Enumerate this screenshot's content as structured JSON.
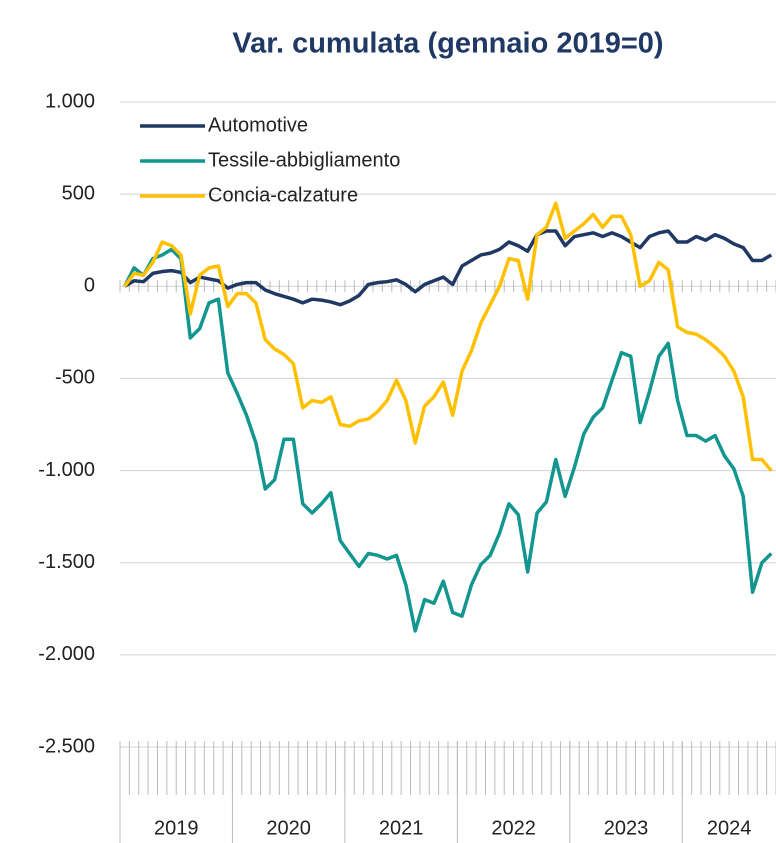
{
  "chart_data": {
    "type": "line",
    "title": "Var. cumulata (gennaio 2019=0)",
    "categories": [
      null,
      null,
      null,
      null,
      null,
      null,
      null,
      null,
      null,
      null,
      null,
      null,
      null,
      null,
      null,
      null,
      null,
      null,
      null,
      null,
      null,
      null,
      null,
      null,
      null,
      null,
      null,
      null,
      null,
      null,
      null,
      null,
      null,
      null,
      null,
      null,
      null,
      null,
      null,
      null,
      null,
      null,
      null,
      null,
      null,
      null,
      null,
      null,
      null,
      null,
      null,
      null,
      null,
      null,
      null,
      null,
      null,
      null,
      null,
      null,
      null,
      null,
      null,
      null,
      null,
      null,
      null,
      null,
      null,
      null
    ],
    "x_groups": [
      {
        "label": "2019",
        "months": 12
      },
      {
        "label": "2020",
        "months": 12
      },
      {
        "label": "2021",
        "months": 12
      },
      {
        "label": "2022",
        "months": 12
      },
      {
        "label": "2023",
        "months": 12
      },
      {
        "label": "2024",
        "months": 10
      }
    ],
    "ylim": [
      -2500,
      1000
    ],
    "yticks": [
      {
        "value": -2500,
        "label": "-2.500"
      },
      {
        "value": -2000,
        "label": "-2.000"
      },
      {
        "value": -1500,
        "label": "-1.500"
      },
      {
        "value": -1000,
        "label": "-1.000"
      },
      -500,
      0,
      500,
      {
        "value": 1000,
        "label": "1.000"
      }
    ],
    "grid": true,
    "legend": "upper left",
    "series": [
      {
        "name": "Automotive",
        "color": "#203864",
        "values": [
          0,
          30,
          25,
          70,
          80,
          85,
          75,
          20,
          50,
          40,
          30,
          -10,
          10,
          20,
          20,
          -20,
          -40,
          -55,
          -70,
          -90,
          -70,
          -75,
          -85,
          -100,
          -80,
          -50,
          10,
          20,
          25,
          35,
          10,
          -30,
          10,
          30,
          50,
          10,
          110,
          140,
          170,
          180,
          200,
          240,
          220,
          190,
          280,
          300,
          300,
          220,
          270,
          280,
          290,
          270,
          290,
          270,
          240,
          210,
          270,
          290,
          300,
          240,
          240,
          270,
          250,
          280,
          260,
          230,
          210,
          140,
          140,
          170
        ]
      },
      {
        "name": "Tessile-abbigliamento",
        "color": "#12968f",
        "values": [
          0,
          100,
          60,
          150,
          170,
          200,
          150,
          -280,
          -230,
          -90,
          -70,
          -470,
          -580,
          -700,
          -850,
          -1100,
          -1050,
          -830,
          -830,
          -1180,
          -1230,
          -1180,
          -1120,
          -1380,
          -1450,
          -1520,
          -1450,
          -1460,
          -1480,
          -1460,
          -1620,
          -1870,
          -1700,
          -1720,
          -1600,
          -1770,
          -1790,
          -1620,
          -1510,
          -1460,
          -1340,
          -1180,
          -1240,
          -1550,
          -1230,
          -1170,
          -940,
          -1140,
          -980,
          -800,
          -710,
          -660,
          -510,
          -360,
          -380,
          -740,
          -570,
          -380,
          -310,
          -620,
          -810,
          -810,
          -840,
          -810,
          -920,
          -990,
          -1140,
          -1660,
          -1500,
          -1450
        ]
      },
      {
        "name": "Concia-calzature",
        "color": "#ffc000",
        "values": [
          0,
          70,
          60,
          130,
          240,
          220,
          170,
          -150,
          60,
          100,
          110,
          -110,
          -40,
          -40,
          -90,
          -290,
          -340,
          -370,
          -420,
          -660,
          -620,
          -630,
          -600,
          -750,
          -760,
          -730,
          -720,
          -680,
          -620,
          -510,
          -620,
          -850,
          -650,
          -600,
          -520,
          -700,
          -460,
          -350,
          -200,
          -100,
          0,
          150,
          140,
          -70,
          280,
          320,
          450,
          260,
          300,
          340,
          390,
          320,
          380,
          380,
          280,
          0,
          30,
          130,
          90,
          -220,
          -250,
          -260,
          -290,
          -330,
          -380,
          -460,
          -600,
          -940,
          -940,
          -1000
        ]
      }
    ]
  }
}
